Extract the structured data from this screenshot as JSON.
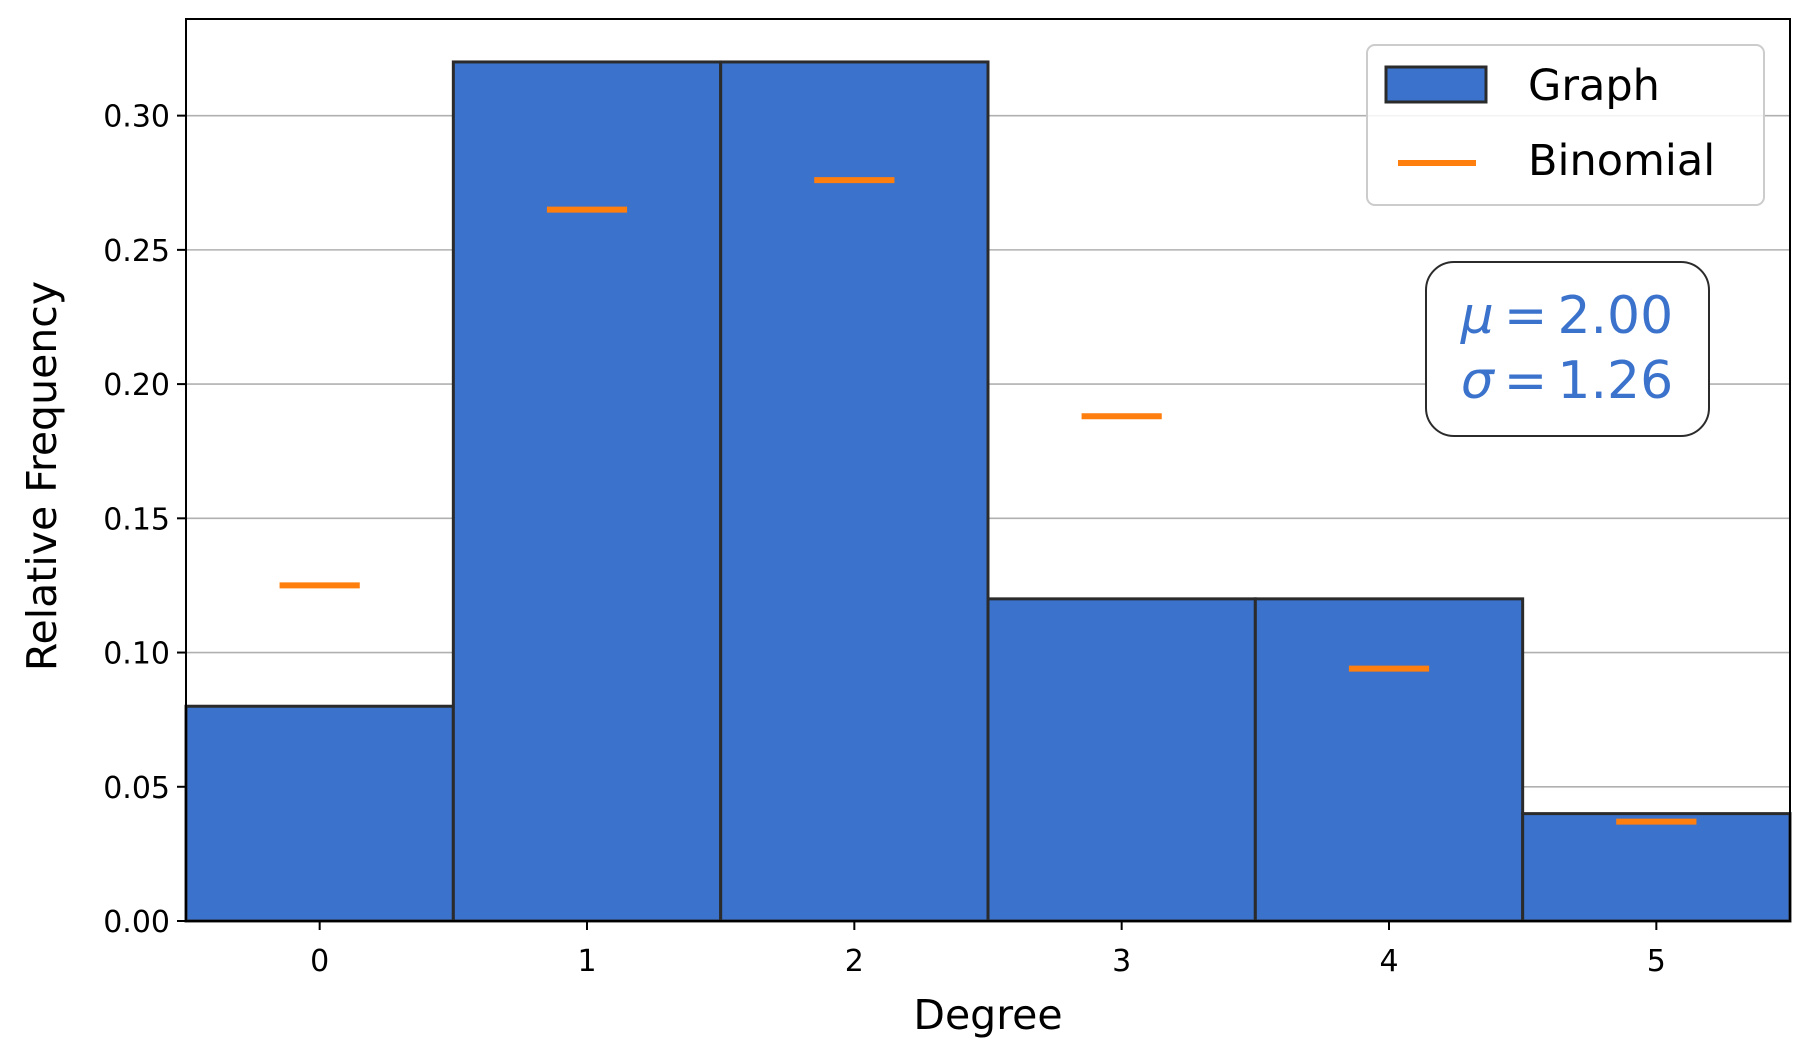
{
  "chart_data": {
    "type": "bar",
    "xlabel": "Degree",
    "ylabel": "Relative Frequency",
    "categories": [
      0,
      1,
      2,
      3,
      4,
      5
    ],
    "xlim": [
      -0.5,
      5.5
    ],
    "ylim": [
      0,
      0.336
    ],
    "yticks": [
      0.0,
      0.05,
      0.1,
      0.15,
      0.2,
      0.25,
      0.3
    ],
    "ytick_labels": [
      "0.00",
      "0.05",
      "0.10",
      "0.15",
      "0.20",
      "0.25",
      "0.30"
    ],
    "grid": "horizontal",
    "legend_position": "top-right",
    "series": [
      {
        "name": "Graph",
        "kind": "bar",
        "color": "#3a72cc",
        "edgecolor": "#2b2b2b",
        "values": [
          0.08,
          0.32,
          0.32,
          0.12,
          0.12,
          0.04
        ]
      },
      {
        "name": "Binomial",
        "kind": "marker",
        "color": "#ff7f0e",
        "values": [
          0.125,
          0.265,
          0.276,
          0.188,
          0.094,
          0.037
        ]
      }
    ],
    "annotation": {
      "mu_symbol": "μ",
      "sigma_symbol": "σ",
      "eq": "=",
      "mu_value": "2.00",
      "sigma_value": "1.26",
      "color": "#3a72cc"
    }
  }
}
